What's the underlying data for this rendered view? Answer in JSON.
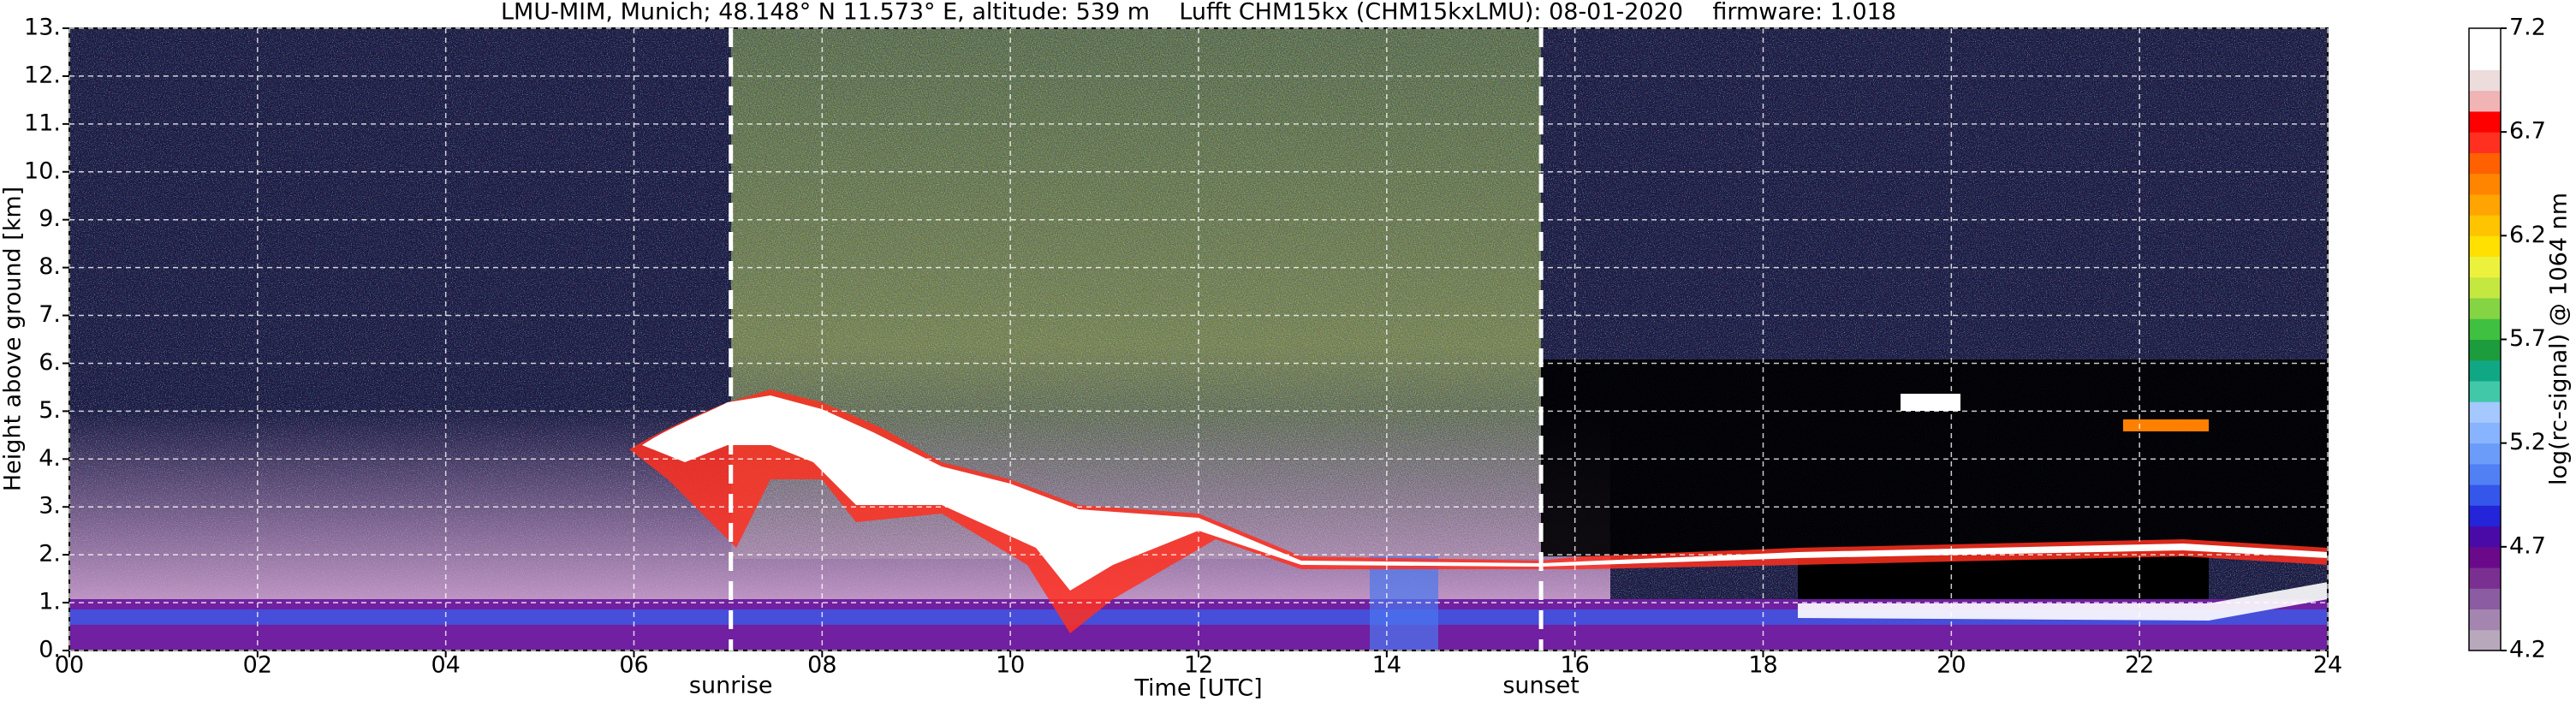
{
  "chart_data": {
    "type": "heatmap",
    "title": "LMU-MIM, Munich; 48.148° N 11.573° E, altitude: 539 m    Lufft CHM15kx (CHM15kxLMU): 08-01-2020    firmware: 1.018",
    "xlabel": "Time [UTC]",
    "ylabel": "Height above ground [km]",
    "xlim": [
      0,
      24
    ],
    "xticks": [
      {
        "value": 0,
        "label": "00"
      },
      {
        "value": 2,
        "label": "02"
      },
      {
        "value": 4,
        "label": "04"
      },
      {
        "value": 6,
        "label": "06"
      },
      {
        "value": 8,
        "label": "08"
      },
      10,
      12,
      14,
      16,
      18,
      20,
      22,
      24
    ],
    "ylim": [
      0,
      13
    ],
    "yticks": [
      {
        "value": 0,
        "label": "0."
      },
      {
        "value": 1,
        "label": "1."
      },
      {
        "value": 2,
        "label": "2."
      },
      {
        "value": 3,
        "label": "3."
      },
      {
        "value": 4,
        "label": "4."
      },
      {
        "value": 5,
        "label": "5."
      },
      {
        "value": 6,
        "label": "6."
      },
      {
        "value": 7,
        "label": "7."
      },
      {
        "value": 8,
        "label": "8."
      },
      {
        "value": 9,
        "label": "9."
      },
      {
        "value": 10,
        "label": "10."
      },
      {
        "value": 11,
        "label": "11."
      },
      {
        "value": 12,
        "label": "12."
      },
      {
        "value": 13,
        "label": "13."
      }
    ],
    "grid": true,
    "annotations": [
      {
        "text": "sunrise",
        "x": 7.03
      },
      {
        "text": "sunset",
        "x": 15.64
      }
    ],
    "colorbar": {
      "label": "log(rc-signal) @ 1064 nm",
      "lim": [
        4.2,
        7.2
      ],
      "ticks": [
        4.2,
        4.7,
        5.2,
        5.7,
        6.2,
        6.7,
        7.2
      ],
      "colors": [
        "#b8a8bc",
        "#a485b0",
        "#8c5ca2",
        "#7a3090",
        "#6a0a8a",
        "#4a0aa8",
        "#2424d8",
        "#3456ea",
        "#5080f4",
        "#6c9cfa",
        "#88b4ff",
        "#a4c8ff",
        "#40c8a8",
        "#10a884",
        "#1c9c3c",
        "#40c040",
        "#84d444",
        "#c4e840",
        "#ecf23c",
        "#ffe000",
        "#ffc400",
        "#ffa400",
        "#ff8400",
        "#ff6000",
        "#ff3020",
        "#ff0000",
        "#f0b4b4",
        "#ecdcdc",
        "#ffffff",
        "#ffffff"
      ]
    }
  }
}
